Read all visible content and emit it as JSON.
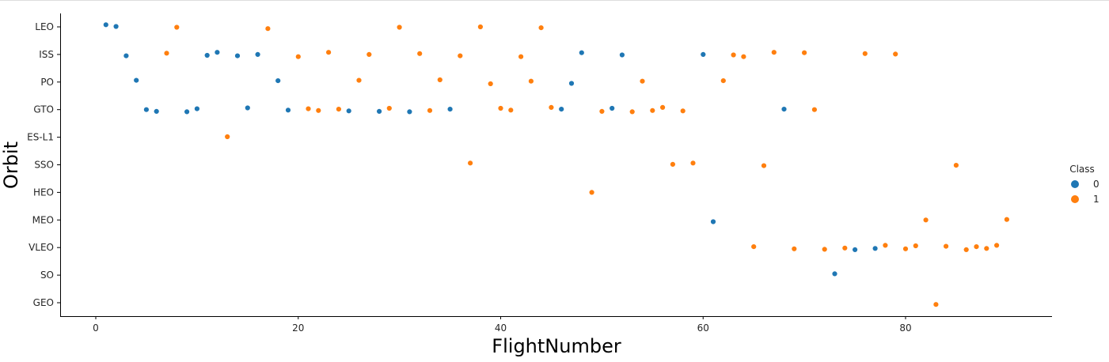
{
  "chart_data": {
    "type": "scatter",
    "xlabel": "FlightNumber",
    "ylabel": "Orbit",
    "xlim": [
      -9,
      89
    ],
    "x_ticks": [
      0,
      20,
      40,
      60,
      80
    ],
    "categories_y": [
      "LEO",
      "ISS",
      "PO",
      "GTO",
      "ES-L1",
      "SSO",
      "HEO",
      "MEO",
      "VLEO",
      "SO",
      "GEO"
    ],
    "legend": {
      "title": "Class",
      "placement": "right",
      "entries": [
        {
          "label": "0",
          "color": "#1f77b4"
        },
        {
          "label": "1",
          "color": "#ff7f0e"
        }
      ]
    },
    "grid": false,
    "points": [
      {
        "x": 1,
        "y": "LEO",
        "class": 0
      },
      {
        "x": 2,
        "y": "LEO",
        "class": 0
      },
      {
        "x": 3,
        "y": "ISS",
        "class": 0
      },
      {
        "x": 4,
        "y": "PO",
        "class": 0
      },
      {
        "x": 5,
        "y": "GTO",
        "class": 0
      },
      {
        "x": 6,
        "y": "GTO",
        "class": 0
      },
      {
        "x": 7,
        "y": "ISS",
        "class": 1
      },
      {
        "x": 8,
        "y": "LEO",
        "class": 1
      },
      {
        "x": 9,
        "y": "GTO",
        "class": 0
      },
      {
        "x": 10,
        "y": "GTO",
        "class": 0
      },
      {
        "x": 11,
        "y": "ISS",
        "class": 0
      },
      {
        "x": 12,
        "y": "ISS",
        "class": 0
      },
      {
        "x": 13,
        "y": "ES-L1",
        "class": 1
      },
      {
        "x": 14,
        "y": "ISS",
        "class": 0
      },
      {
        "x": 15,
        "y": "GTO",
        "class": 0
      },
      {
        "x": 16,
        "y": "ISS",
        "class": 0
      },
      {
        "x": 17,
        "y": "LEO",
        "class": 1
      },
      {
        "x": 18,
        "y": "PO",
        "class": 0
      },
      {
        "x": 19,
        "y": "GTO",
        "class": 0
      },
      {
        "x": 20,
        "y": "ISS",
        "class": 1
      },
      {
        "x": 21,
        "y": "GTO",
        "class": 1
      },
      {
        "x": 22,
        "y": "GTO",
        "class": 1
      },
      {
        "x": 23,
        "y": "ISS",
        "class": 1
      },
      {
        "x": 24,
        "y": "GTO",
        "class": 1
      },
      {
        "x": 25,
        "y": "GTO",
        "class": 0
      },
      {
        "x": 26,
        "y": "PO",
        "class": 1
      },
      {
        "x": 27,
        "y": "ISS",
        "class": 1
      },
      {
        "x": 28,
        "y": "GTO",
        "class": 0
      },
      {
        "x": 29,
        "y": "GTO",
        "class": 1
      },
      {
        "x": 30,
        "y": "LEO",
        "class": 1
      },
      {
        "x": 31,
        "y": "GTO",
        "class": 0
      },
      {
        "x": 32,
        "y": "ISS",
        "class": 1
      },
      {
        "x": 33,
        "y": "GTO",
        "class": 1
      },
      {
        "x": 34,
        "y": "PO",
        "class": 1
      },
      {
        "x": 35,
        "y": "GTO",
        "class": 0
      },
      {
        "x": 36,
        "y": "ISS",
        "class": 1
      },
      {
        "x": 37,
        "y": "SSO",
        "class": 1
      },
      {
        "x": 38,
        "y": "LEO",
        "class": 1
      },
      {
        "x": 39,
        "y": "PO",
        "class": 1
      },
      {
        "x": 40,
        "y": "GTO",
        "class": 1
      },
      {
        "x": 41,
        "y": "GTO",
        "class": 1
      },
      {
        "x": 42,
        "y": "ISS",
        "class": 1
      },
      {
        "x": 43,
        "y": "PO",
        "class": 1
      },
      {
        "x": 44,
        "y": "LEO",
        "class": 1
      },
      {
        "x": 45,
        "y": "GTO",
        "class": 1
      },
      {
        "x": 46,
        "y": "GTO",
        "class": 0
      },
      {
        "x": 47,
        "y": "PO",
        "class": 0
      },
      {
        "x": 48,
        "y": "ISS",
        "class": 0
      },
      {
        "x": 49,
        "y": "HEO",
        "class": 1
      },
      {
        "x": 50,
        "y": "GTO",
        "class": 1
      },
      {
        "x": 51,
        "y": "GTO",
        "class": 0
      },
      {
        "x": 52,
        "y": "ISS",
        "class": 0
      },
      {
        "x": 53,
        "y": "GTO",
        "class": 1
      },
      {
        "x": 54,
        "y": "PO",
        "class": 1
      },
      {
        "x": 55,
        "y": "GTO",
        "class": 1
      },
      {
        "x": 56,
        "y": "GTO",
        "class": 1
      },
      {
        "x": 57,
        "y": "SSO",
        "class": 1
      },
      {
        "x": 58,
        "y": "GTO",
        "class": 1
      },
      {
        "x": 59,
        "y": "SSO",
        "class": 1
      },
      {
        "x": 60,
        "y": "ISS",
        "class": 0
      },
      {
        "x": 61,
        "y": "MEO",
        "class": 0
      },
      {
        "x": 62,
        "y": "PO",
        "class": 1
      },
      {
        "x": 63,
        "y": "ISS",
        "class": 1
      },
      {
        "x": 64,
        "y": "ISS",
        "class": 1
      },
      {
        "x": 65,
        "y": "VLEO",
        "class": 1
      },
      {
        "x": 66,
        "y": "SSO",
        "class": 1
      },
      {
        "x": 67,
        "y": "ISS",
        "class": 1
      },
      {
        "x": 68,
        "y": "GTO",
        "class": 0
      },
      {
        "x": 69,
        "y": "VLEO",
        "class": 1
      },
      {
        "x": 70,
        "y": "ISS",
        "class": 1
      },
      {
        "x": 71,
        "y": "GTO",
        "class": 1
      },
      {
        "x": 72,
        "y": "VLEO",
        "class": 1
      },
      {
        "x": 73,
        "y": "SO",
        "class": 0
      },
      {
        "x": 74,
        "y": "VLEO",
        "class": 1
      },
      {
        "x": 75,
        "y": "VLEO",
        "class": 0
      },
      {
        "x": 76,
        "y": "ISS",
        "class": 1
      },
      {
        "x": 77,
        "y": "VLEO",
        "class": 0
      },
      {
        "x": 78,
        "y": "VLEO",
        "class": 1
      },
      {
        "x": 79,
        "y": "ISS",
        "class": 1
      },
      {
        "x": 80,
        "y": "VLEO",
        "class": 1
      },
      {
        "x": 81,
        "y": "VLEO",
        "class": 1
      },
      {
        "x": 82,
        "y": "MEO",
        "class": 1
      },
      {
        "x": 83,
        "y": "GEO",
        "class": 1
      },
      {
        "x": 84,
        "y": "VLEO",
        "class": 1
      },
      {
        "x": 85,
        "y": "SSO",
        "class": 1
      },
      {
        "x": 86,
        "y": "VLEO",
        "class": 1
      },
      {
        "x": 87,
        "y": "VLEO",
        "class": 1
      },
      {
        "x": 88,
        "y": "VLEO",
        "class": 1
      },
      {
        "x": 89,
        "y": "VLEO",
        "class": 1
      },
      {
        "x": 90,
        "y": "MEO",
        "class": 1
      }
    ]
  }
}
